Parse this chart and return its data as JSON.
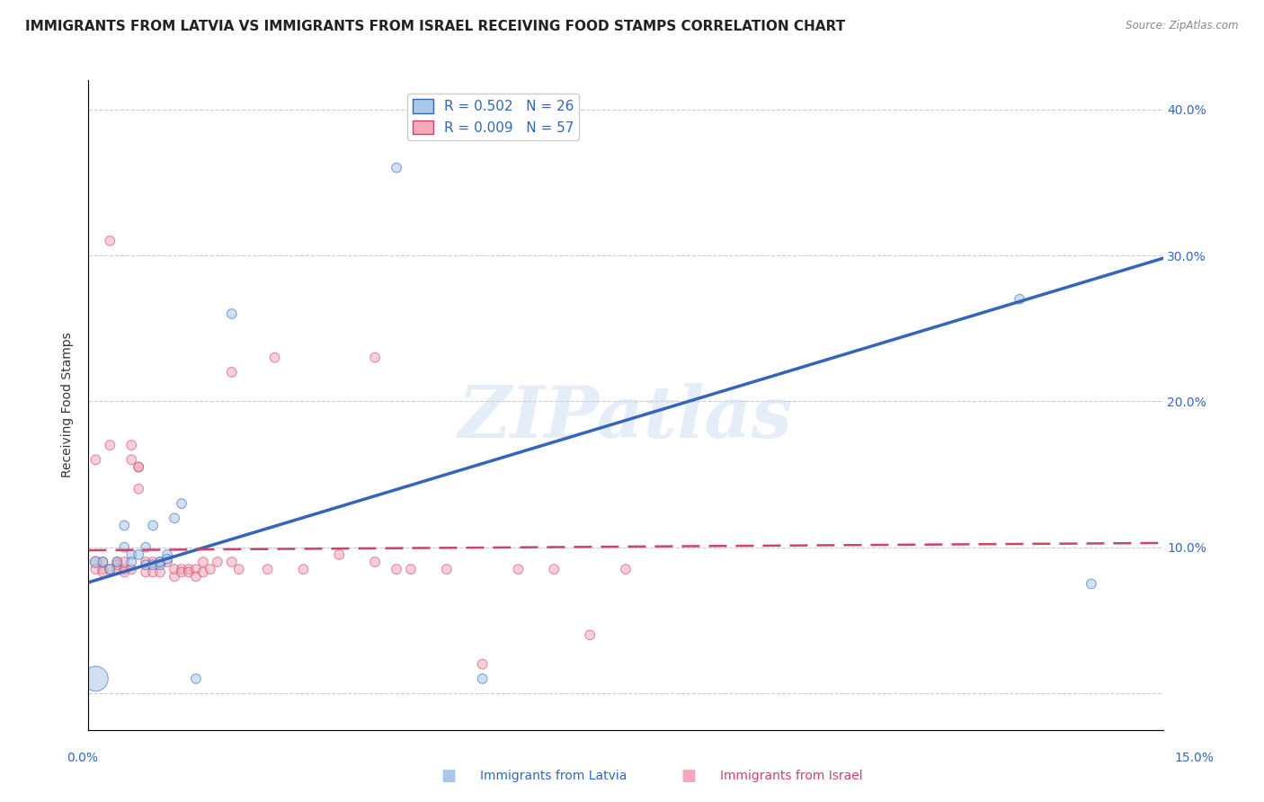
{
  "title": "IMMIGRANTS FROM LATVIA VS IMMIGRANTS FROM ISRAEL RECEIVING FOOD STAMPS CORRELATION CHART",
  "source": "Source: ZipAtlas.com",
  "ylabel": "Receiving Food Stamps",
  "xlim": [
    0.0,
    0.15
  ],
  "ylim": [
    -0.025,
    0.42
  ],
  "yticks": [
    0.0,
    0.1,
    0.2,
    0.3,
    0.4
  ],
  "ytick_labels": [
    "",
    "10.0%",
    "20.0%",
    "30.0%",
    "40.0%"
  ],
  "background_color": "#ffffff",
  "watermark": "ZIPatlas",
  "legend_R_latvia": "R = 0.502",
  "legend_N_latvia": "N = 26",
  "legend_R_israel": "R = 0.009",
  "legend_N_israel": "N = 57",
  "color_latvia": "#a8c8e8",
  "color_israel": "#f4a8b8",
  "line_color_latvia": "#3366bb",
  "line_color_israel": "#cc4466",
  "latvia_line_x": [
    0.0,
    0.15
  ],
  "latvia_line_y": [
    0.076,
    0.298
  ],
  "israel_line_x": [
    0.0,
    0.15
  ],
  "israel_line_y": [
    0.098,
    0.103
  ],
  "scatter_latvia_x": [
    0.001,
    0.002,
    0.003,
    0.004,
    0.005,
    0.005,
    0.006,
    0.006,
    0.007,
    0.008,
    0.008,
    0.009,
    0.009,
    0.01,
    0.01,
    0.011,
    0.011,
    0.012,
    0.013,
    0.015,
    0.02,
    0.043,
    0.055,
    0.13,
    0.14,
    0.001
  ],
  "scatter_latvia_y": [
    0.09,
    0.09,
    0.085,
    0.09,
    0.115,
    0.1,
    0.095,
    0.09,
    0.095,
    0.1,
    0.088,
    0.115,
    0.088,
    0.088,
    0.09,
    0.095,
    0.092,
    0.12,
    0.13,
    0.01,
    0.26,
    0.36,
    0.01,
    0.27,
    0.075,
    0.01
  ],
  "scatter_latvia_s": [
    80,
    60,
    60,
    60,
    60,
    60,
    60,
    60,
    60,
    60,
    60,
    60,
    60,
    60,
    60,
    60,
    60,
    60,
    60,
    60,
    60,
    60,
    60,
    60,
    60,
    400
  ],
  "scatter_israel_x": [
    0.001,
    0.001,
    0.001,
    0.002,
    0.002,
    0.002,
    0.003,
    0.003,
    0.003,
    0.004,
    0.004,
    0.004,
    0.005,
    0.005,
    0.005,
    0.006,
    0.006,
    0.006,
    0.007,
    0.007,
    0.007,
    0.008,
    0.008,
    0.009,
    0.009,
    0.01,
    0.01,
    0.011,
    0.012,
    0.012,
    0.013,
    0.013,
    0.014,
    0.014,
    0.015,
    0.015,
    0.016,
    0.016,
    0.017,
    0.018,
    0.02,
    0.02,
    0.021,
    0.025,
    0.026,
    0.03,
    0.035,
    0.04,
    0.04,
    0.043,
    0.045,
    0.05,
    0.055,
    0.06,
    0.065,
    0.07,
    0.075
  ],
  "scatter_israel_y": [
    0.16,
    0.09,
    0.085,
    0.085,
    0.09,
    0.083,
    0.31,
    0.17,
    0.085,
    0.09,
    0.085,
    0.088,
    0.085,
    0.09,
    0.083,
    0.17,
    0.16,
    0.085,
    0.155,
    0.155,
    0.14,
    0.09,
    0.083,
    0.09,
    0.083,
    0.083,
    0.09,
    0.09,
    0.08,
    0.085,
    0.085,
    0.083,
    0.085,
    0.083,
    0.085,
    0.08,
    0.09,
    0.083,
    0.085,
    0.09,
    0.22,
    0.09,
    0.085,
    0.085,
    0.23,
    0.085,
    0.095,
    0.23,
    0.09,
    0.085,
    0.085,
    0.085,
    0.02,
    0.085,
    0.085,
    0.04,
    0.085
  ],
  "scatter_israel_s": [
    60,
    60,
    60,
    60,
    60,
    60,
    60,
    60,
    60,
    60,
    60,
    60,
    60,
    60,
    60,
    60,
    60,
    60,
    60,
    60,
    60,
    60,
    60,
    60,
    60,
    60,
    60,
    60,
    60,
    60,
    60,
    60,
    60,
    60,
    60,
    60,
    60,
    60,
    60,
    60,
    60,
    60,
    60,
    60,
    60,
    60,
    60,
    60,
    60,
    60,
    60,
    60,
    60,
    60,
    60,
    60,
    60
  ],
  "grid_color": "#cccccc",
  "title_fontsize": 11,
  "axis_label_fontsize": 10,
  "tick_fontsize": 10,
  "legend_fontsize": 11
}
